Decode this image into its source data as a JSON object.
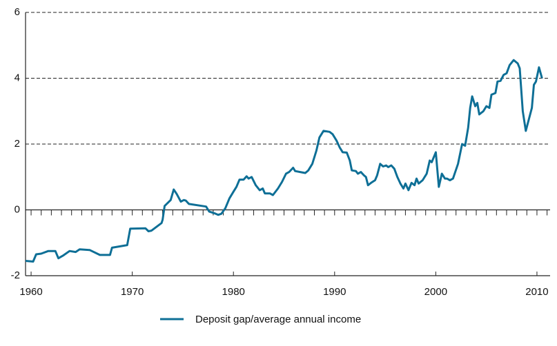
{
  "chart_data": {
    "type": "line",
    "x": [
      1959.45,
      1960.2,
      1960.5,
      1961.0,
      1961.7,
      1962.4,
      1962.7,
      1963.2,
      1963.8,
      1964.4,
      1964.8,
      1965.8,
      1966.8,
      1967.8,
      1968.0,
      1969.5,
      1969.8,
      1971.3,
      1971.6,
      1971.9,
      1972.9,
      1973.0,
      1973.2,
      1973.8,
      1974.1,
      1974.4,
      1974.8,
      1975.1,
      1975.3,
      1975.6,
      1977.3,
      1977.6,
      1978.1,
      1978.5,
      1978.8,
      1979.2,
      1979.6,
      1980.0,
      1980.3,
      1980.6,
      1981.0,
      1981.3,
      1981.5,
      1981.8,
      1982.2,
      1982.6,
      1982.9,
      1983.1,
      1983.6,
      1983.9,
      1984.4,
      1984.8,
      1985.2,
      1985.5,
      1985.9,
      1986.1,
      1986.6,
      1987.1,
      1987.4,
      1987.8,
      1988.2,
      1988.5,
      1988.9,
      1989.5,
      1989.8,
      1990.2,
      1990.5,
      1990.8,
      1991.2,
      1991.5,
      1991.7,
      1992.1,
      1992.3,
      1992.6,
      1992.9,
      1993.1,
      1993.3,
      1993.6,
      1994.0,
      1994.2,
      1994.5,
      1994.8,
      1995.1,
      1995.3,
      1995.6,
      1995.9,
      1996.2,
      1996.5,
      1996.8,
      1997.0,
      1997.3,
      1997.6,
      1997.9,
      1998.1,
      1998.3,
      1998.7,
      1999.1,
      1999.4,
      1999.6,
      2000.0,
      2000.3,
      2000.6,
      2000.9,
      2001.1,
      2001.4,
      2001.7,
      2002.2,
      2002.6,
      2002.9,
      2003.2,
      2003.4,
      2003.6,
      2003.9,
      2004.1,
      2004.3,
      2004.7,
      2005.0,
      2005.3,
      2005.5,
      2005.9,
      2006.1,
      2006.4,
      2006.7,
      2007.0,
      2007.3,
      2007.7,
      2008.1,
      2008.3,
      2008.6,
      2008.9,
      2009.5,
      2009.7,
      2009.9,
      2010.2,
      2010.5
    ],
    "series": [
      {
        "name": "Deposit gap/average annual income",
        "color": "#0e6f96",
        "values": [
          -1.55,
          -1.57,
          -1.35,
          -1.33,
          -1.25,
          -1.25,
          -1.47,
          -1.38,
          -1.25,
          -1.28,
          -1.2,
          -1.22,
          -1.37,
          -1.37,
          -1.15,
          -1.07,
          -0.57,
          -0.56,
          -0.65,
          -0.63,
          -0.4,
          -0.3,
          0.12,
          0.3,
          0.62,
          0.48,
          0.25,
          0.3,
          0.28,
          0.18,
          0.1,
          -0.05,
          -0.1,
          -0.15,
          -0.12,
          0.05,
          0.35,
          0.55,
          0.7,
          0.92,
          0.92,
          1.02,
          0.95,
          1.0,
          0.75,
          0.6,
          0.65,
          0.5,
          0.5,
          0.45,
          0.65,
          0.85,
          1.1,
          1.15,
          1.28,
          1.18,
          1.15,
          1.12,
          1.2,
          1.4,
          1.8,
          2.2,
          2.4,
          2.37,
          2.3,
          2.1,
          1.9,
          1.75,
          1.74,
          1.5,
          1.2,
          1.18,
          1.1,
          1.15,
          1.05,
          1.0,
          0.75,
          0.82,
          0.9,
          1.05,
          1.4,
          1.32,
          1.35,
          1.3,
          1.35,
          1.25,
          1.0,
          0.8,
          0.65,
          0.8,
          0.6,
          0.82,
          0.75,
          0.95,
          0.8,
          0.9,
          1.1,
          1.5,
          1.45,
          1.75,
          0.7,
          1.1,
          0.95,
          0.95,
          0.9,
          0.95,
          1.4,
          2.0,
          1.95,
          2.5,
          3.1,
          3.45,
          3.15,
          3.25,
          2.9,
          3.0,
          3.15,
          3.1,
          3.5,
          3.55,
          3.9,
          3.92,
          4.1,
          4.15,
          4.4,
          4.55,
          4.45,
          4.3,
          3.0,
          2.4,
          3.1,
          3.8,
          3.9,
          4.33,
          4.0
        ]
      }
    ],
    "xlim": [
      1959.45,
      2011.3
    ],
    "xticks": [
      1960,
      1970,
      1980,
      1990,
      2000,
      2010
    ],
    "x_minor_ticks": [
      1960,
      1961,
      1962,
      1963,
      1964,
      1965,
      1966,
      1967,
      1968,
      1969,
      1970,
      1971,
      1972,
      1973,
      1974,
      1975,
      1976,
      1977,
      1978,
      1979,
      1980,
      1981,
      1982,
      1983,
      1984,
      1985,
      1986,
      1987,
      1988,
      1989,
      1990,
      1991,
      1992,
      1993,
      1994,
      1995,
      1996,
      1997,
      1998,
      1999,
      2000,
      2001,
      2002,
      2003,
      2004,
      2005,
      2006,
      2007,
      2008,
      2009,
      2010,
      2011
    ],
    "ylim": [
      -2,
      6
    ],
    "yticks": [
      -2,
      0,
      2,
      4,
      6
    ],
    "grid": true,
    "legend": "bottom"
  }
}
